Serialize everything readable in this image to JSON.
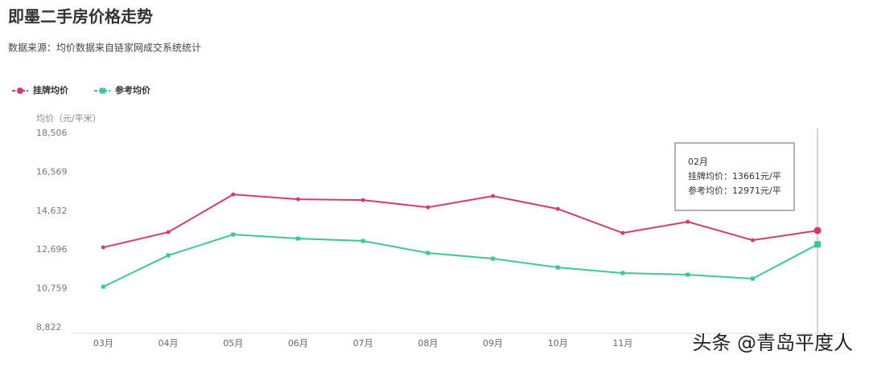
{
  "chart_data": {
    "type": "line",
    "title": "即墨二手房价格走势",
    "subtitle": "数据来源：均价数据来自链家网成交系统统计",
    "y_label": "均价（元/平米）",
    "categories": [
      "03月",
      "04月",
      "05月",
      "06月",
      "07月",
      "08月",
      "09月",
      "10月",
      "11月",
      null,
      null,
      null
    ],
    "series": [
      {
        "name": "挂牌均价",
        "color": "#d63a6c",
        "values": [
          12822,
          13580,
          15460,
          15220,
          15180,
          14820,
          15380,
          14740,
          13540,
          14100,
          13180,
          13661
        ]
      },
      {
        "name": "参考均价",
        "color": "#3cc79a",
        "values": [
          10862,
          12422,
          13462,
          13262,
          13142,
          12542,
          12262,
          11822,
          11542,
          11462,
          11262,
          12971
        ]
      }
    ],
    "ylim": [
      8822,
      18506
    ],
    "yticks": [
      {
        "value": 8822,
        "label": "8,822"
      },
      {
        "value": 10759,
        "label": "10,759"
      },
      {
        "value": 12696,
        "label": "12,696"
      },
      {
        "value": 14632,
        "label": "14,632"
      },
      {
        "value": 16569,
        "label": "16,569"
      },
      {
        "value": 18506,
        "label": "18,506"
      }
    ],
    "legend": "top-left",
    "tooltip": {
      "title": "02月",
      "lines": [
        "挂牌均价：13661元/平",
        "参考均价：12971元/平"
      ]
    },
    "watermark": "头条 @青岛平度人"
  }
}
